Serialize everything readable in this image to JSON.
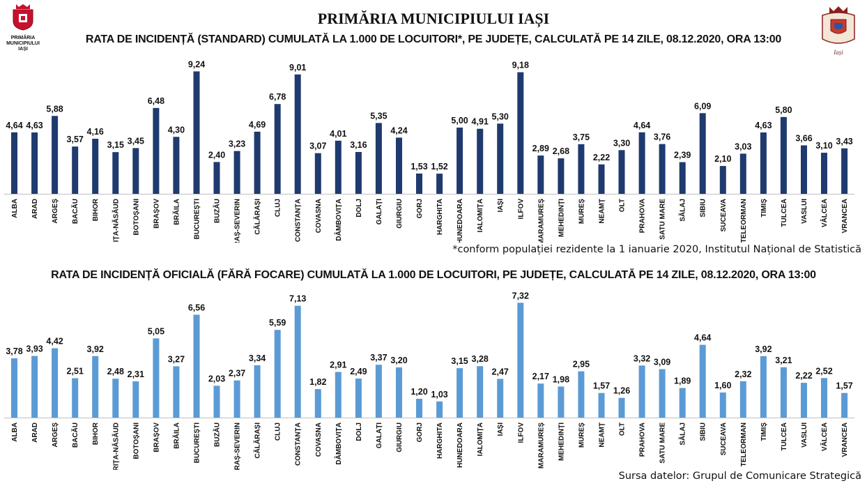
{
  "header": {
    "main_title": "PRIMĂRIA MUNICIPIULUI IAȘI",
    "logo_left_text": "PRIMĂRIA MUNICIPIULUI IAȘI",
    "logo_right_text": "Iași"
  },
  "colors": {
    "chart1_bar": "#1f3a6e",
    "chart2_bar": "#5b9bd5",
    "axis": "#bfbfbf"
  },
  "chart1": {
    "footnote": "*conform populației rezidente la 1 ianuarie 2020, Institutul Național de Statistică"
  },
  "chart2": {
    "source": "Sursa datelor: Grupul de Comunicare Strategică"
  },
  "chart_data": [
    {
      "type": "bar",
      "title": "RATA DE INCIDENȚĂ (STANDARD) CUMULATĂ LA 1.000 DE LOCUITORI*, PE JUDEȚE, CALCULATĂ PE 14 ZILE, 08.12.2020, ORA 13:00",
      "xlabel": "",
      "ylabel": "",
      "ylim": [
        0,
        10
      ],
      "categories": [
        "ALBA",
        "ARAD",
        "ARGEȘ",
        "BACĂU",
        "BIHOR",
        "BISTRIȚA-NĂSĂUD",
        "BOTOȘANI",
        "BRAȘOV",
        "BRĂILA",
        "BUCUREȘTI",
        "BUZĂU",
        "CARAȘ-SEVERIN",
        "CĂLĂRAȘI",
        "CLUJ",
        "CONSTANȚA",
        "COVASNA",
        "DÂMBOVIȚA",
        "DOLJ",
        "GALAȚI",
        "GIURGIU",
        "GORJ",
        "HARGHITA",
        "HUNEDOARA",
        "IALOMIȚA",
        "IAȘI",
        "ILFOV",
        "MARAMUREȘ",
        "MEHEDINȚI",
        "MUREȘ",
        "NEAMȚ",
        "OLT",
        "PRAHOVA",
        "SATU MARE",
        "SĂLAJ",
        "SIBIU",
        "SUCEAVA",
        "TELEORMAN",
        "TIMIȘ",
        "TULCEA",
        "VASLUI",
        "VÂLCEA",
        "VRANCEA"
      ],
      "values": [
        4.64,
        4.63,
        5.88,
        3.57,
        4.16,
        3.15,
        3.45,
        6.48,
        4.3,
        9.24,
        2.4,
        3.23,
        4.69,
        6.78,
        9.01,
        3.07,
        4.01,
        3.16,
        5.35,
        4.24,
        1.53,
        1.52,
        5.0,
        4.91,
        5.3,
        9.18,
        2.89,
        2.68,
        3.75,
        2.22,
        3.3,
        4.64,
        3.76,
        2.39,
        6.09,
        2.1,
        3.03,
        4.63,
        5.8,
        3.66,
        3.1,
        3.43
      ],
      "value_labels": [
        "4,64",
        "4,63",
        "5,88",
        "3,57",
        "4,16",
        "3,15",
        "3,45",
        "6,48",
        "4,30",
        "9,24",
        "2,40",
        "3,23",
        "4,69",
        "6,78",
        "9,01",
        "3,07",
        "4,01",
        "3,16",
        "5,35",
        "4,24",
        "1,53",
        "1,52",
        "5,00",
        "4,91",
        "5,30",
        "9,18",
        "2,89",
        "2,68",
        "3,75",
        "2,22",
        "3,30",
        "4,64",
        "3,76",
        "2,39",
        "6,09",
        "2,10",
        "3,03",
        "4,63",
        "5,80",
        "3,66",
        "3,10",
        "3,43"
      ]
    },
    {
      "type": "bar",
      "title": "RATA DE INCIDENȚĂ OFICIALĂ (FĂRĂ FOCARE) CUMULATĂ LA 1.000 DE LOCUITORI, PE JUDEȚE, CALCULATĂ PE 14 ZILE, 08.12.2020, ORA 13:00",
      "xlabel": "",
      "ylabel": "",
      "ylim": [
        0,
        8
      ],
      "categories": [
        "ALBA",
        "ARAD",
        "ARGEȘ",
        "BACĂU",
        "BIHOR",
        "BISTRIȚA-NĂSĂUD",
        "BOTOȘANI",
        "BRAȘOV",
        "BRĂILA",
        "BUCUREȘTI",
        "BUZĂU",
        "CARAȘ-SEVERIN",
        "CĂLĂRAȘI",
        "CLUJ",
        "CONSTANȚA",
        "COVASNA",
        "DÂMBOVIȚA",
        "DOLJ",
        "GALAȚI",
        "GIURGIU",
        "GORJ",
        "HARGHITA",
        "HUNEDOARA",
        "IALOMIȚA",
        "IAȘI",
        "ILFOV",
        "MARAMUREȘ",
        "MEHEDINȚI",
        "MUREȘ",
        "NEAMȚ",
        "OLT",
        "PRAHOVA",
        "SATU MARE",
        "SĂLAJ",
        "SIBIU",
        "SUCEAVA",
        "TELEORMAN",
        "TIMIȘ",
        "TULCEA",
        "VASLUI",
        "VÂLCEA",
        "VRANCEA"
      ],
      "values": [
        3.78,
        3.93,
        4.42,
        2.51,
        3.92,
        2.48,
        2.31,
        5.05,
        3.27,
        6.56,
        2.03,
        2.37,
        3.34,
        5.59,
        7.13,
        1.82,
        2.91,
        2.49,
        3.37,
        3.2,
        1.2,
        1.03,
        3.15,
        3.28,
        2.47,
        7.32,
        2.17,
        1.98,
        2.95,
        1.57,
        1.26,
        3.32,
        3.09,
        1.89,
        4.64,
        1.6,
        2.32,
        3.92,
        3.21,
        2.22,
        2.52,
        1.57
      ],
      "value_labels": [
        "3,78",
        "3,93",
        "4,42",
        "2,51",
        "3,92",
        "2,48",
        "2,31",
        "5,05",
        "3,27",
        "6,56",
        "2,03",
        "2,37",
        "3,34",
        "5,59",
        "7,13",
        "1,82",
        "2,91",
        "2,49",
        "3,37",
        "3,20",
        "1,20",
        "1,03",
        "3,15",
        "3,28",
        "2,47",
        "7,32",
        "2,17",
        "1,98",
        "2,95",
        "1,57",
        "1,26",
        "3,32",
        "3,09",
        "1,89",
        "4,64",
        "1,60",
        "2,32",
        "3,92",
        "3,21",
        "2,22",
        "2,52",
        "1,57"
      ]
    }
  ]
}
